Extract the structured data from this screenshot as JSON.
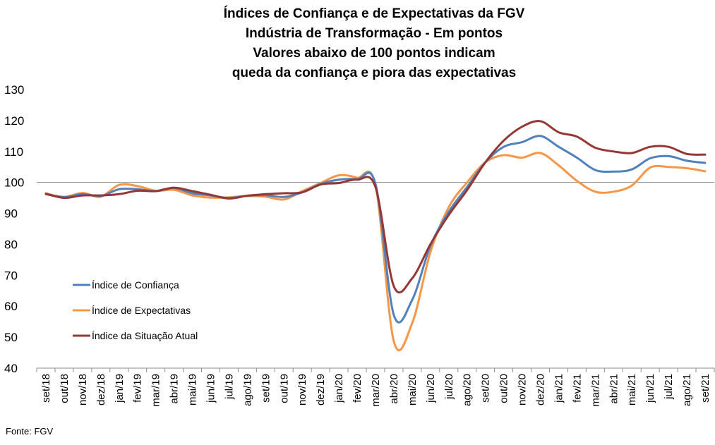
{
  "chart_data": {
    "type": "line",
    "title_lines": [
      "Índices de Confiança e de Expectativas da FGV",
      "Indústria de Transformação - Em pontos",
      "Valores abaixo de 100 pontos indicam",
      "queda da confiança e piora das expectativas"
    ],
    "categories": [
      "set/18",
      "out/18",
      "nov/18",
      "dez/18",
      "jan/19",
      "fev/19",
      "mar/19",
      "abr/19",
      "mai/19",
      "jun/19",
      "jul/19",
      "ago/19",
      "set/19",
      "out/19",
      "nov/19",
      "dez/19",
      "jan/20",
      "fev/20",
      "mar/20",
      "abr/20",
      "mai/20",
      "jun/20",
      "jul/20",
      "ago/20",
      "set/20",
      "out/20",
      "nov/20",
      "dez/20",
      "jan/21",
      "fev/21",
      "mar/21",
      "abr/21",
      "mai/21",
      "jun/21",
      "jul/21",
      "ago/21",
      "set/21"
    ],
    "ylim": [
      40,
      130
    ],
    "yticks": [
      40,
      50,
      60,
      70,
      80,
      90,
      100,
      110,
      120,
      130
    ],
    "reference_line": 100,
    "legend_position": "left",
    "series": [
      {
        "name": "Índice de Confiança",
        "color": "#4f81bd",
        "values": [
          96.2,
          95.3,
          96.2,
          95.6,
          97.8,
          97.8,
          97.2,
          98.2,
          96.5,
          95.8,
          95.0,
          95.7,
          95.9,
          95.3,
          96.8,
          99.5,
          100.9,
          101.0,
          99.5,
          57.2,
          62.0,
          79.5,
          90.5,
          98.5,
          106.5,
          111.5,
          113.0,
          115.0,
          111.5,
          108.0,
          104.0,
          103.5,
          104.2,
          107.8,
          108.5,
          107.0,
          106.3
        ]
      },
      {
        "name": "Índice de Expectativas",
        "color": "#f79646",
        "values": [
          96.5,
          95.3,
          96.6,
          95.4,
          99.2,
          98.8,
          97.3,
          97.6,
          95.8,
          95.1,
          95.2,
          95.6,
          95.4,
          94.5,
          97.2,
          99.8,
          102.3,
          101.5,
          99.0,
          48.7,
          54.5,
          77.5,
          92.0,
          100.0,
          106.5,
          108.8,
          108.0,
          109.5,
          105.5,
          100.5,
          97.0,
          97.0,
          99.0,
          104.8,
          105.0,
          104.6,
          103.6
        ]
      },
      {
        "name": "Índice da Situação Atual",
        "color": "#953735",
        "values": [
          96.3,
          95.0,
          95.8,
          95.8,
          96.2,
          97.3,
          97.2,
          98.3,
          97.2,
          96.0,
          94.8,
          95.7,
          96.2,
          96.5,
          96.8,
          99.3,
          99.8,
          100.9,
          98.5,
          66.5,
          69.0,
          80.0,
          89.5,
          97.5,
          106.5,
          113.5,
          118.0,
          119.8,
          116.2,
          114.8,
          111.2,
          110.0,
          109.5,
          111.5,
          111.5,
          109.2,
          109.0
        ]
      }
    ]
  },
  "source": "Fonte: FGV"
}
